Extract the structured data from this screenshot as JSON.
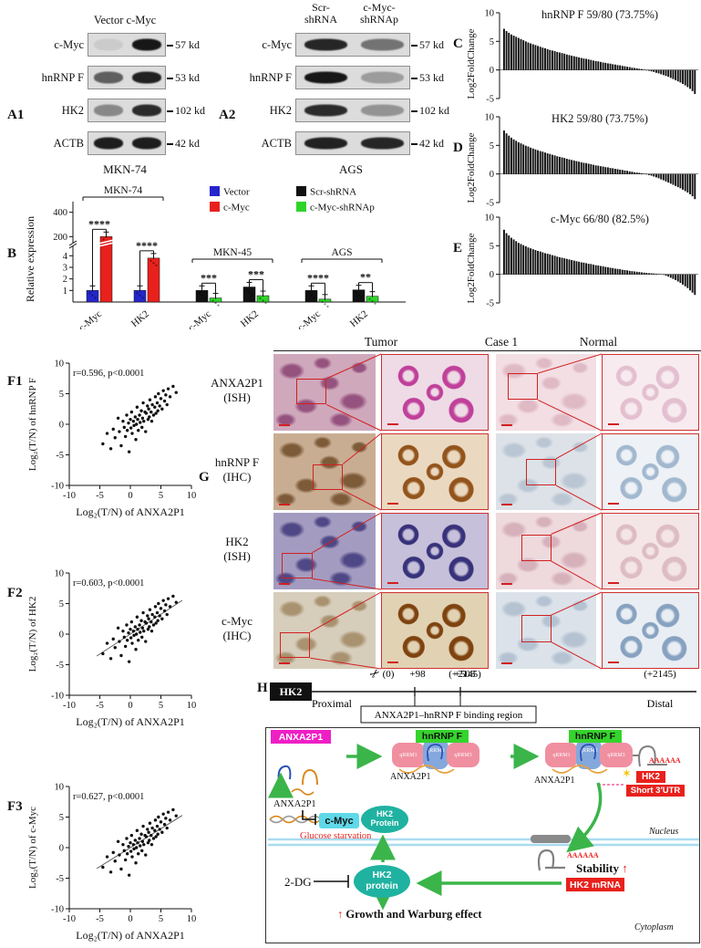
{
  "panelA1": {
    "label": "A1",
    "header": "Vector c-Myc",
    "cell_line": "MKN-74",
    "rows": [
      {
        "protein": "c-Myc",
        "kd": "57 kd",
        "lanes": [
          0.08,
          0.95
        ]
      },
      {
        "protein": "hnRNP F",
        "kd": "53 kd",
        "lanes": [
          0.6,
          0.9
        ]
      },
      {
        "protein": "HK2",
        "kd": "102 kd",
        "lanes": [
          0.4,
          0.85
        ]
      },
      {
        "protein": "ACTB",
        "kd": "42 kd",
        "lanes": [
          0.92,
          0.92
        ]
      }
    ]
  },
  "panelA2": {
    "label": "A2",
    "header1": "Scr-\nshRNA",
    "header2": "c-Myc-\nshRNAp",
    "cell_line": "AGS",
    "rows": [
      {
        "protein": "c-Myc",
        "kd": "57 kd",
        "lanes": [
          0.88,
          0.5
        ]
      },
      {
        "protein": "hnRNP F",
        "kd": "53 kd",
        "lanes": [
          0.95,
          0.3
        ]
      },
      {
        "protein": "HK2",
        "kd": "102 kd",
        "lanes": [
          0.85,
          0.35
        ]
      },
      {
        "protein": "ACTB",
        "kd": "42 kd",
        "lanes": [
          0.9,
          0.88
        ]
      }
    ]
  },
  "chart_data": {
    "B": {
      "panel_label": "B",
      "type": "bar",
      "ylabel": "Relative expression",
      "ytick_lower": [
        1,
        2,
        3,
        4
      ],
      "ytick_upper": [
        200,
        400
      ],
      "legend": [
        {
          "label": "Vector",
          "color": "#2525cc"
        },
        {
          "label": "c-Myc",
          "color": "#e8211d"
        },
        {
          "label": "Scr-shRNA",
          "color": "#111111"
        },
        {
          "label": "c-Myc-shRNAp",
          "color": "#2fd42a"
        }
      ],
      "groups": [
        {
          "name": "MKN-74",
          "control_color": "#2525cc",
          "treat_color": "#e8211d",
          "pairs": [
            {
              "label": "c-Myc",
              "control": 1.0,
              "treat": 200,
              "sig": "****"
            },
            {
              "label": "HK2",
              "control": 1.0,
              "treat": 3.8,
              "sig": "****"
            }
          ]
        },
        {
          "name": "MKN-45",
          "control_color": "#111111",
          "treat_color": "#2fd42a",
          "pairs": [
            {
              "label": "c-Myc",
              "control": 1.0,
              "treat": 0.35,
              "sig": "***"
            },
            {
              "label": "HK2",
              "control": 1.3,
              "treat": 0.55,
              "sig": "***"
            }
          ]
        },
        {
          "name": "AGS",
          "control_color": "#111111",
          "treat_color": "#2fd42a",
          "pairs": [
            {
              "label": "c-Myc",
              "control": 1.0,
              "treat": 0.25,
              "sig": "****"
            },
            {
              "label": "HK2",
              "control": 1.05,
              "treat": 0.5,
              "sig": "**"
            }
          ]
        }
      ]
    },
    "C": {
      "panel_label": "C",
      "type": "waterfall",
      "title": "hnRNP F 59/80 (73.75%)",
      "ylabel": "Log2FoldChange",
      "ylim": [
        -5,
        10
      ],
      "yticks": [
        10,
        5,
        0,
        -5
      ],
      "values": [
        7.2,
        6.8,
        6.5,
        6.2,
        6.0,
        5.8,
        5.6,
        5.4,
        5.2,
        5.0,
        4.8,
        4.65,
        4.5,
        4.35,
        4.2,
        4.05,
        3.9,
        3.8,
        3.65,
        3.5,
        3.4,
        3.3,
        3.15,
        3.05,
        2.95,
        2.85,
        2.7,
        2.6,
        2.5,
        2.4,
        2.3,
        2.2,
        2.1,
        2.0,
        1.95,
        1.85,
        1.75,
        1.65,
        1.55,
        1.5,
        1.4,
        1.3,
        1.25,
        1.15,
        1.1,
        1.0,
        0.95,
        0.85,
        0.8,
        0.7,
        0.65,
        0.55,
        0.5,
        0.4,
        0.35,
        0.3,
        0.2,
        0.15,
        0.08,
        -0.08,
        -0.15,
        -0.25,
        -0.35,
        -0.5,
        -0.6,
        -0.75,
        -0.9,
        -1.05,
        -1.2,
        -1.4,
        -1.6,
        -1.8,
        -2.0,
        -2.2,
        -2.45,
        -2.7,
        -3.0,
        -3.3,
        -3.7,
        -4.2
      ]
    },
    "D": {
      "panel_label": "D",
      "type": "waterfall",
      "title": "HK2 59/80 (73.75%)",
      "ylabel": "Log2FoldChange",
      "ylim": [
        -5,
        10
      ],
      "yticks": [
        10,
        5,
        0,
        -5
      ],
      "values": [
        7.6,
        7.1,
        6.7,
        6.35,
        6.05,
        5.8,
        5.55,
        5.35,
        5.15,
        4.95,
        4.8,
        4.6,
        4.45,
        4.3,
        4.15,
        4.0,
        3.9,
        3.75,
        3.6,
        3.5,
        3.35,
        3.25,
        3.1,
        3.0,
        2.9,
        2.8,
        2.65,
        2.55,
        2.45,
        2.35,
        2.25,
        2.15,
        2.05,
        1.95,
        1.9,
        1.8,
        1.7,
        1.6,
        1.5,
        1.45,
        1.35,
        1.3,
        1.2,
        1.15,
        1.05,
        1.0,
        0.9,
        0.85,
        0.75,
        0.7,
        0.6,
        0.55,
        0.45,
        0.4,
        0.3,
        0.25,
        0.2,
        0.12,
        0.06,
        -0.1,
        -0.2,
        -0.3,
        -0.45,
        -0.6,
        -0.75,
        -0.95,
        -1.1,
        -1.3,
        -1.5,
        -1.7,
        -1.9,
        -2.1,
        -2.3,
        -2.5,
        -2.75,
        -3.0,
        -3.25,
        -3.55,
        -3.9,
        -4.4
      ]
    },
    "E": {
      "panel_label": "E",
      "type": "waterfall",
      "title": "c-Myc 66/80 (82.5%)",
      "ylabel": "Log2FoldChange",
      "ylim": [
        -5,
        10
      ],
      "yticks": [
        10,
        5,
        0,
        -5
      ],
      "values": [
        7.8,
        7.2,
        6.8,
        6.4,
        6.1,
        5.8,
        5.5,
        5.3,
        5.1,
        4.9,
        4.7,
        4.55,
        4.4,
        4.25,
        4.1,
        4.0,
        3.85,
        3.7,
        3.6,
        3.5,
        3.35,
        3.25,
        3.1,
        3.0,
        2.9,
        2.8,
        2.7,
        2.6,
        2.5,
        2.4,
        2.3,
        2.2,
        2.1,
        2.05,
        1.95,
        1.85,
        1.8,
        1.7,
        1.6,
        1.55,
        1.45,
        1.4,
        1.3,
        1.25,
        1.15,
        1.1,
        1.0,
        0.95,
        0.9,
        0.8,
        0.75,
        0.7,
        0.6,
        0.55,
        0.5,
        0.45,
        0.4,
        0.35,
        0.3,
        0.25,
        0.2,
        0.18,
        0.14,
        0.1,
        0.07,
        0.04,
        -0.1,
        -0.25,
        -0.4,
        -0.6,
        -0.8,
        -1.0,
        -1.25,
        -1.5,
        -1.8,
        -2.1,
        -2.4,
        -2.8,
        -3.2,
        -3.6
      ]
    },
    "F1": {
      "panel_label": "F1",
      "type": "scatter",
      "annotation": "r=0.596, p<0.0001",
      "xlabel": "Log₂(T/N) of ANXA2P1",
      "ylabel": "Log₂(T/N) of hnRNP F",
      "xlim": [
        -10,
        10
      ],
      "ylim": [
        -10,
        10
      ],
      "ticks": [
        -10,
        -5,
        0,
        5,
        10
      ],
      "trendline": false,
      "slope": 0.62
    },
    "F2": {
      "panel_label": "F2",
      "type": "scatter",
      "annotation": "r=0.603, p<0.0001",
      "xlabel": "Log₂(T/N) of ANXA2P1",
      "ylabel": "Log₂(T/N) of HK2",
      "xlim": [
        -10,
        10
      ],
      "ylim": [
        -10,
        10
      ],
      "ticks": [
        -10,
        -5,
        0,
        5,
        10
      ],
      "trendline": true,
      "slope": 0.65
    },
    "F3": {
      "panel_label": "F3",
      "type": "scatter",
      "annotation": "r=0.627, p<0.0001",
      "xlabel": "Log₂(T/N) of ANXA2P1",
      "ylabel": "Log₂(T/N) of c-Myc",
      "xlim": [
        -10,
        10
      ],
      "ylim": [
        -10,
        10
      ],
      "ticks": [
        -10,
        -5,
        0,
        5,
        10
      ],
      "trendline": true,
      "slope": 0.62
    },
    "scatter_points": [
      [
        -4.5,
        -3.2
      ],
      [
        -3.8,
        -1.5
      ],
      [
        -3.2,
        -4
      ],
      [
        -2.8,
        -0.8
      ],
      [
        -2.5,
        -2.2
      ],
      [
        -2,
        1
      ],
      [
        -1.8,
        -1.2
      ],
      [
        -1.5,
        -3.5
      ],
      [
        -1.2,
        0.5
      ],
      [
        -1,
        -0.5
      ],
      [
        -0.8,
        -2
      ],
      [
        -0.6,
        1.5
      ],
      [
        -0.5,
        -1
      ],
      [
        -0.3,
        0.2
      ],
      [
        -0.2,
        -4.5
      ],
      [
        0,
        0.8
      ],
      [
        0.1,
        -0.6
      ],
      [
        0.2,
        2
      ],
      [
        0.3,
        -1.5
      ],
      [
        0.5,
        0.5
      ],
      [
        0.6,
        -0.2
      ],
      [
        0.8,
        1.2
      ],
      [
        0.9,
        -2.5
      ],
      [
        1,
        0
      ],
      [
        1.1,
        2.8
      ],
      [
        1.2,
        0.8
      ],
      [
        1.3,
        -1
      ],
      [
        1.5,
        1.5
      ],
      [
        1.6,
        0.3
      ],
      [
        1.8,
        2.2
      ],
      [
        1.9,
        -0.5
      ],
      [
        2,
        1
      ],
      [
        2.1,
        3.5
      ],
      [
        2.2,
        0.5
      ],
      [
        2.4,
        2
      ],
      [
        2.5,
        -1.2
      ],
      [
        2.6,
        1.8
      ],
      [
        2.8,
        3
      ],
      [
        2.9,
        0.8
      ],
      [
        3,
        2.5
      ],
      [
        3.1,
        1.2
      ],
      [
        3.2,
        4
      ],
      [
        3.4,
        2
      ],
      [
        3.5,
        0.5
      ],
      [
        3.6,
        3.2
      ],
      [
        3.8,
        1.5
      ],
      [
        4,
        2.8
      ],
      [
        4.1,
        4.5
      ],
      [
        4.2,
        1.8
      ],
      [
        4.4,
        3.5
      ],
      [
        4.5,
        2.2
      ],
      [
        4.6,
        5
      ],
      [
        4.8,
        3
      ],
      [
        5,
        4.2
      ],
      [
        5.2,
        2.5
      ],
      [
        5.4,
        5.5
      ],
      [
        5.6,
        3.8
      ],
      [
        5.8,
        4.8
      ],
      [
        6,
        3.2
      ],
      [
        6.2,
        5.8
      ],
      [
        6.5,
        4.5
      ],
      [
        7,
        6.2
      ],
      [
        7.5,
        5.2
      ]
    ]
  },
  "panelG": {
    "label": "G",
    "col_headers": [
      "Tumor",
      "Case 1",
      "Normal"
    ],
    "rows": [
      {
        "name": "ANXA2P1",
        "method": "(ISH)",
        "tumor_rect": [
          0.22,
          0.32,
          0.3,
          0.34
        ],
        "normal_rect": [
          0.12,
          0.25,
          0.3,
          0.35
        ],
        "colors": {
          "tumor": "#cfa8bc",
          "tumor_blob": "#96527e",
          "tumor_zoom": "#eedbe6",
          "tumor_zoom_blob": "#c0409a",
          "normal": "#f2dee3",
          "normal_blob": "#dfb9c4",
          "normal_zoom": "#f7ebf0",
          "normal_zoom_blob": "#e3bfcf"
        }
      },
      {
        "name": "hnRNP F",
        "method": "(IHC)",
        "tumor_rect": [
          0.38,
          0.4,
          0.3,
          0.34
        ],
        "normal_rect": [
          0.3,
          0.33,
          0.3,
          0.35
        ],
        "colors": {
          "tumor": "#c9ad92",
          "tumor_blob": "#7d5b39",
          "tumor_zoom": "#ead9c0",
          "tumor_zoom_blob": "#93541c",
          "normal": "#dde2e8",
          "normal_blob": "#bac6d3",
          "normal_zoom": "#eef2f6",
          "normal_zoom_blob": "#a2b8cf"
        }
      },
      {
        "name": "HK2",
        "method": "(ISH)",
        "tumor_rect": [
          0.08,
          0.52,
          0.3,
          0.34
        ],
        "normal_rect": [
          0.25,
          0.28,
          0.3,
          0.35
        ],
        "colors": {
          "tumor": "#a49cc0",
          "tumor_blob": "#4f4886",
          "tumor_zoom": "#c6c0da",
          "tumor_zoom_blob": "#37327a",
          "normal": "#eed9dd",
          "normal_blob": "#d6b0ba",
          "normal_zoom": "#f4e5e7",
          "normal_zoom_blob": "#ddbcc3"
        }
      },
      {
        "name": "c-Myc",
        "method": "(IHC)",
        "tumor_rect": [
          0.06,
          0.52,
          0.3,
          0.34
        ],
        "normal_rect": [
          0.25,
          0.3,
          0.3,
          0.35
        ],
        "colors": {
          "tumor": "#d6cdbb",
          "tumor_blob": "#a8926f",
          "tumor_zoom": "#e2d2b4",
          "tumor_zoom_blob": "#7e430f",
          "normal": "#dbe2e9",
          "normal_blob": "#b4c2d2",
          "normal_zoom": "#e9eef4",
          "normal_zoom_blob": "#87a2c0"
        }
      }
    ]
  },
  "panelH": {
    "label": "H",
    "gene": "HK2",
    "pos0": "(0)",
    "pos98": "+98",
    "pos508": "+508",
    "pos2145": "(+2145)",
    "proximal": "Proximal",
    "distal": "Distal",
    "region": "ANXA2P1–hnRNP F binding region",
    "scissors": "✂"
  },
  "mechanism": {
    "anxa2p1_box": "ANXA2P1",
    "hnrnpf_box": "hnRNP F",
    "qrrm1": "qRRM1",
    "qrrm2": "qRRM2",
    "qrrm3": "qRRM3",
    "anxa2p1_text": "ANXA2P1",
    "cmyc_box": "c-Myc",
    "hk2_protein_upper": "HK2\nProtein",
    "glucose_starvation": "Glucose starvation",
    "nucleus": "Nucleus",
    "cytoplasm": "Cytoplasm",
    "two_dg": "2-DG",
    "hk2_protein_lower": "HK2\nprotein",
    "stability": "Stability",
    "hk2_mrna_box": "HK2 mRNA",
    "hk2_red_box": "HK2",
    "short_utr_box": "Short 3′UTR",
    "poly_a": "AAAAAA",
    "up_arrow": "↑",
    "spark": "✶",
    "growth": "Growth and Warburg effect"
  },
  "colors": {
    "blue": "#2525cc",
    "red": "#e8211d",
    "black": "#111111",
    "bar_green": "#2fd42a",
    "magenta": "#ee1fc5",
    "green": "#35d42c",
    "teal": "#1fb2a1",
    "cyan": "#5fd8e8",
    "arrow_green": "#3bb54a",
    "micro_red": "#d22020"
  }
}
